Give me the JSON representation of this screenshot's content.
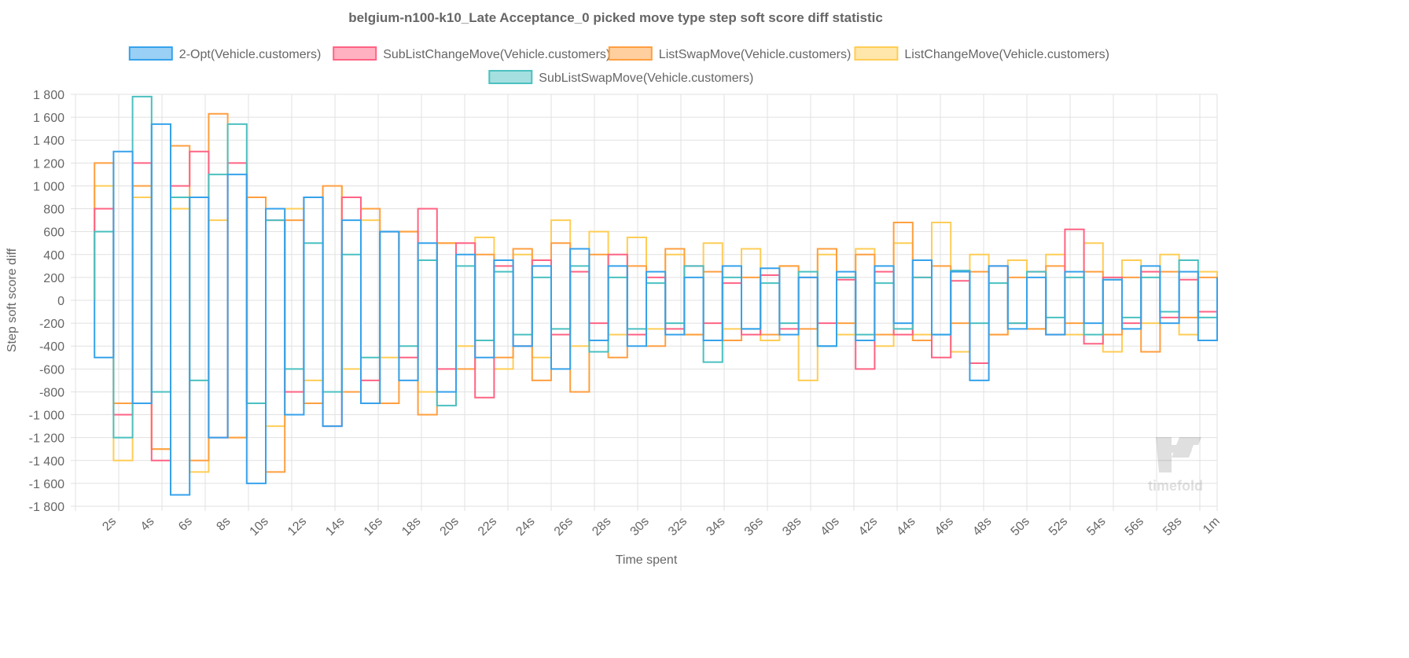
{
  "chart_data": {
    "type": "line",
    "title": "belgium-n100-k10_Late Acceptance_0 picked move type step soft score diff statistic",
    "xlabel": "Time spent",
    "ylabel": "Step soft score diff",
    "xlim_seconds": [
      0,
      60
    ],
    "ylim": [
      -1800,
      1800
    ],
    "y_ticks": [
      "1 800",
      "1 600",
      "1 400",
      "1 200",
      "1 000",
      "800",
      "600",
      "400",
      "200",
      "0",
      "-200",
      "-400",
      "-600",
      "-800",
      "-1 000",
      "-1 200",
      "-1 400",
      "-1 600",
      "-1 800"
    ],
    "x_ticks": [
      "2s",
      "4s",
      "6s",
      "8s",
      "10s",
      "12s",
      "14s",
      "16s",
      "18s",
      "20s",
      "22s",
      "24s",
      "26s",
      "28s",
      "30s",
      "32s",
      "34s",
      "36s",
      "38s",
      "40s",
      "42s",
      "44s",
      "46s",
      "48s",
      "50s",
      "52s",
      "54s",
      "56s",
      "58s",
      "1m"
    ],
    "grid": true,
    "legend_placement": "top",
    "step_line": true,
    "x_seconds": [
      1,
      2,
      3,
      4,
      5,
      6,
      7,
      8,
      9,
      10,
      11,
      12,
      13,
      14,
      15,
      16,
      17,
      18,
      19,
      20,
      21,
      22,
      23,
      24,
      25,
      26,
      27,
      28,
      29,
      30,
      31,
      32,
      33,
      34,
      35,
      36,
      37,
      38,
      39,
      40,
      41,
      42,
      43,
      44,
      45,
      46,
      47,
      48,
      49,
      50,
      51,
      52,
      53,
      54,
      55,
      56,
      57,
      58,
      59,
      60
    ],
    "series": [
      {
        "name": "2-Opt(Vehicle.customers)",
        "color": "#36a2eb",
        "fill": "#9ad0f5",
        "values": [
          -500,
          1300,
          -900,
          1540,
          -1700,
          900,
          -1200,
          1100,
          -1600,
          800,
          -1000,
          900,
          -1100,
          700,
          -900,
          600,
          -700,
          500,
          -800,
          400,
          -500,
          350,
          -400,
          300,
          -600,
          450,
          -350,
          300,
          -400,
          250,
          -300,
          200,
          -350,
          300,
          -250,
          280,
          -300,
          200,
          -400,
          250,
          -350,
          300,
          -200,
          350,
          -300,
          250,
          -700,
          300,
          -250,
          200,
          -300,
          250,
          -200,
          180,
          -250,
          300,
          -200,
          250,
          -350,
          200
        ]
      },
      {
        "name": "SubListChangeMove(Vehicle.customers)",
        "color": "#ff6384",
        "fill": "#ffb1c1",
        "values": [
          800,
          -1000,
          1200,
          -1400,
          1000,
          1300,
          -1200,
          1200,
          -900,
          700,
          -800,
          900,
          -1100,
          900,
          -700,
          600,
          -500,
          800,
          -600,
          500,
          -850,
          300,
          -400,
          350,
          -300,
          250,
          -200,
          400,
          -300,
          200,
          -250,
          300,
          -200,
          150,
          -300,
          220,
          -250,
          200,
          -200,
          180,
          -600,
          250,
          -300,
          200,
          -500,
          170,
          -550,
          300,
          -200,
          250,
          -300,
          620,
          -380,
          200,
          -200,
          250,
          -150,
          180,
          -100,
          200
        ]
      },
      {
        "name": "ListSwapMove(Vehicle.customers)",
        "color": "#ff9f40",
        "fill": "#ffcf9f",
        "values": [
          1200,
          -900,
          1000,
          -1300,
          1350,
          -1400,
          1630,
          -1200,
          900,
          -1500,
          700,
          -900,
          1000,
          -800,
          800,
          -900,
          600,
          -1000,
          500,
          -600,
          400,
          -500,
          450,
          -700,
          500,
          -800,
          400,
          -500,
          300,
          -400,
          450,
          -300,
          250,
          -350,
          200,
          -300,
          300,
          -250,
          450,
          -200,
          400,
          -300,
          680,
          -350,
          300,
          -200,
          250,
          -300,
          200,
          -250,
          300,
          -200,
          250,
          -300,
          200,
          -450,
          250,
          -150,
          200,
          -300
        ]
      },
      {
        "name": "ListChangeMove(Vehicle.customers)",
        "color": "#ffcd56",
        "fill": "#ffe6aa",
        "values": [
          1000,
          -1400,
          900,
          -1300,
          800,
          -1500,
          700,
          -1200,
          900,
          -1100,
          800,
          -700,
          1000,
          -600,
          700,
          -500,
          600,
          -800,
          500,
          -400,
          550,
          -600,
          400,
          -500,
          700,
          -400,
          600,
          -300,
          550,
          -250,
          400,
          -300,
          500,
          -250,
          450,
          -350,
          300,
          -700,
          400,
          -300,
          450,
          -400,
          500,
          -300,
          680,
          -450,
          400,
          -300,
          350,
          -250,
          400,
          -300,
          500,
          -450,
          350,
          -200,
          400,
          -300,
          250,
          -350
        ]
      },
      {
        "name": "SubListSwapMove(Vehicle.customers)",
        "color": "#4bc0c0",
        "fill": "#a5dfdf",
        "values": [
          600,
          -1200,
          1780,
          -800,
          900,
          -700,
          1100,
          1540,
          -900,
          700,
          -600,
          500,
          -800,
          400,
          -500,
          600,
          -400,
          350,
          -920,
          300,
          -350,
          250,
          -300,
          200,
          -250,
          300,
          -450,
          200,
          -250,
          150,
          -200,
          300,
          -540,
          200,
          -250,
          150,
          -200,
          250,
          -400,
          200,
          -300,
          150,
          -250,
          200,
          -300,
          260,
          -200,
          150,
          -200,
          250,
          -150,
          200,
          -300,
          180,
          -150,
          200,
          -100,
          350,
          -150,
          100
        ]
      }
    ],
    "watermark": "timefold"
  }
}
